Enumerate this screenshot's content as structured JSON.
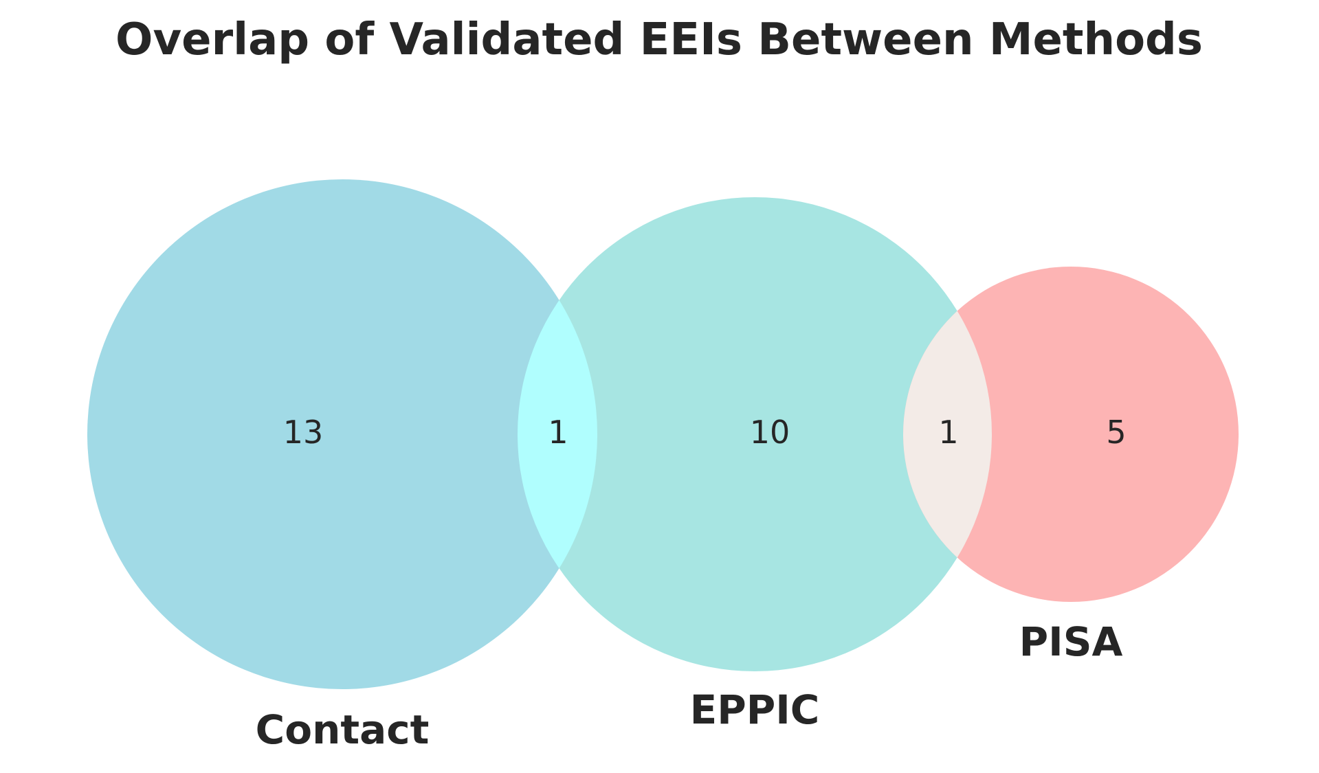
{
  "title": "Overlap of Validated EEIs Between Methods",
  "colors": {
    "contact": "#a1dae6",
    "eppic": "#a7e5e2",
    "pisa": "#fdb4b4",
    "contact_eppic": "#b0fefe",
    "eppic_pisa": "#f3ebe7",
    "text": "#262626"
  },
  "chart_data": {
    "type": "venn",
    "sets": [
      {
        "key": "contact",
        "name": "Contact"
      },
      {
        "key": "eppic",
        "name": "EPPIC"
      },
      {
        "key": "pisa",
        "name": "PISA"
      }
    ],
    "regions": [
      {
        "sets": [
          "Contact"
        ],
        "count": "13"
      },
      {
        "sets": [
          "Contact",
          "EPPIC"
        ],
        "count": "1"
      },
      {
        "sets": [
          "EPPIC"
        ],
        "count": "10"
      },
      {
        "sets": [
          "EPPIC",
          "PISA"
        ],
        "count": "1"
      },
      {
        "sets": [
          "PISA"
        ],
        "count": "5"
      }
    ]
  }
}
